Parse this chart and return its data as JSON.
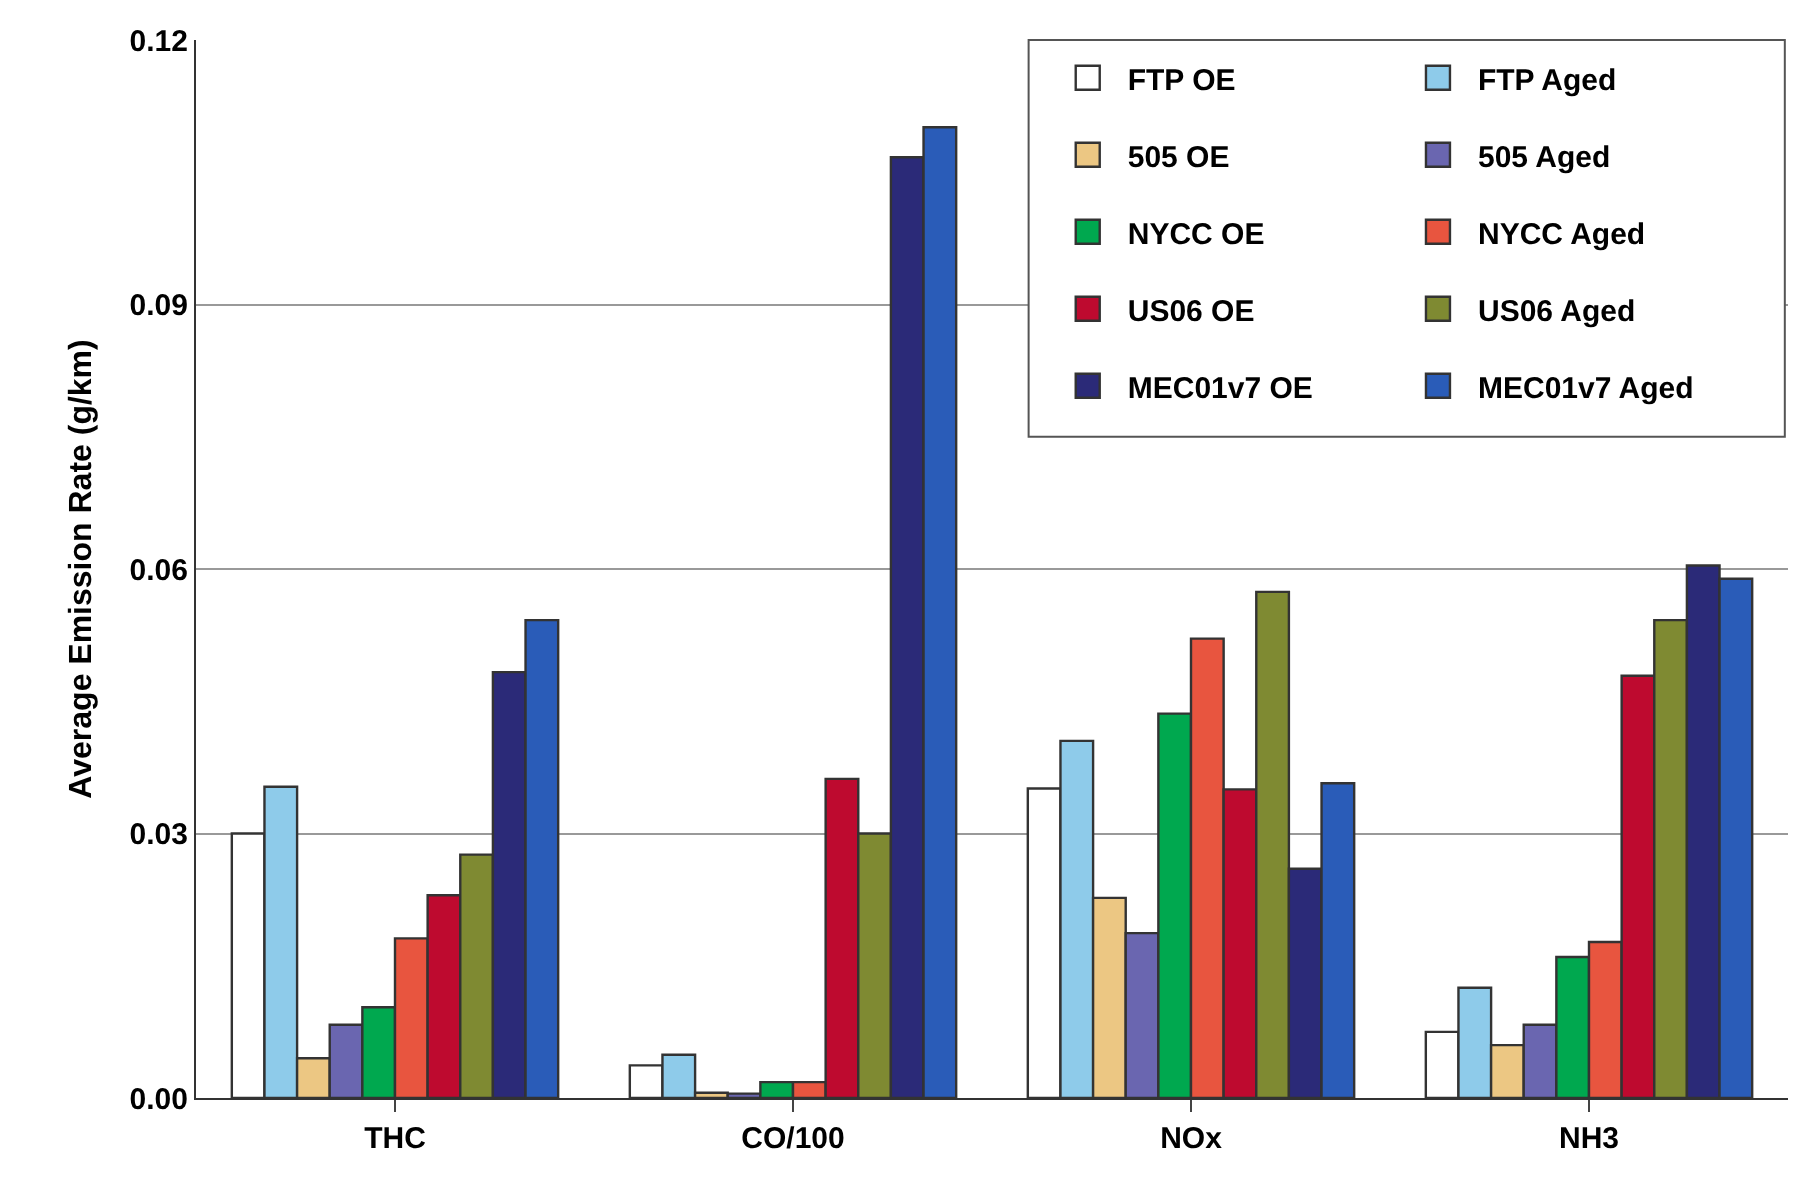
{
  "chart_data": {
    "type": "bar",
    "ylabel": "Average Emission Rate (g/km)",
    "categories": [
      "THC",
      "CO/100",
      "NOx",
      "NH3"
    ],
    "series": [
      {
        "name": "FTP OE",
        "color": "#ffffff",
        "values": [
          0.03,
          0.0037,
          0.0351,
          0.0075
        ]
      },
      {
        "name": "FTP Aged",
        "color": "#8ecbea",
        "values": [
          0.0353,
          0.0049,
          0.0405,
          0.0125
        ]
      },
      {
        "name": "505 OE",
        "color": "#ecc783",
        "values": [
          0.0045,
          0.0006,
          0.0227,
          0.006
        ]
      },
      {
        "name": "505 Aged",
        "color": "#6a66b0",
        "values": [
          0.0083,
          0.0005,
          0.0187,
          0.0083
        ]
      },
      {
        "name": "NYCC OE",
        "color": "#00a84f",
        "values": [
          0.0103,
          0.0018,
          0.0436,
          0.016
        ]
      },
      {
        "name": "NYCC Aged",
        "color": "#e8553f",
        "values": [
          0.0181,
          0.0018,
          0.0521,
          0.0177
        ]
      },
      {
        "name": "US06 OE",
        "color": "#be0a2f",
        "values": [
          0.023,
          0.0362,
          0.035,
          0.0479
        ]
      },
      {
        "name": "US06 Aged",
        "color": "#7f8a32",
        "values": [
          0.0276,
          0.03,
          0.0574,
          0.0542
        ]
      },
      {
        "name": "MEC01v7 OE",
        "color": "#2b2a78",
        "values": [
          0.0483,
          0.1067,
          0.026,
          0.0604
        ]
      },
      {
        "name": "MEC01v7 Aged",
        "color": "#2a5cb8",
        "values": [
          0.0542,
          0.1101,
          0.0357,
          0.0589
        ]
      }
    ],
    "ylim": [
      0,
      0.12
    ],
    "yticks": [
      {
        "value": 0,
        "label": "0.00"
      },
      0.03,
      0.06,
      0.09,
      0.12
    ],
    "grid": "y",
    "legend": "top right"
  }
}
